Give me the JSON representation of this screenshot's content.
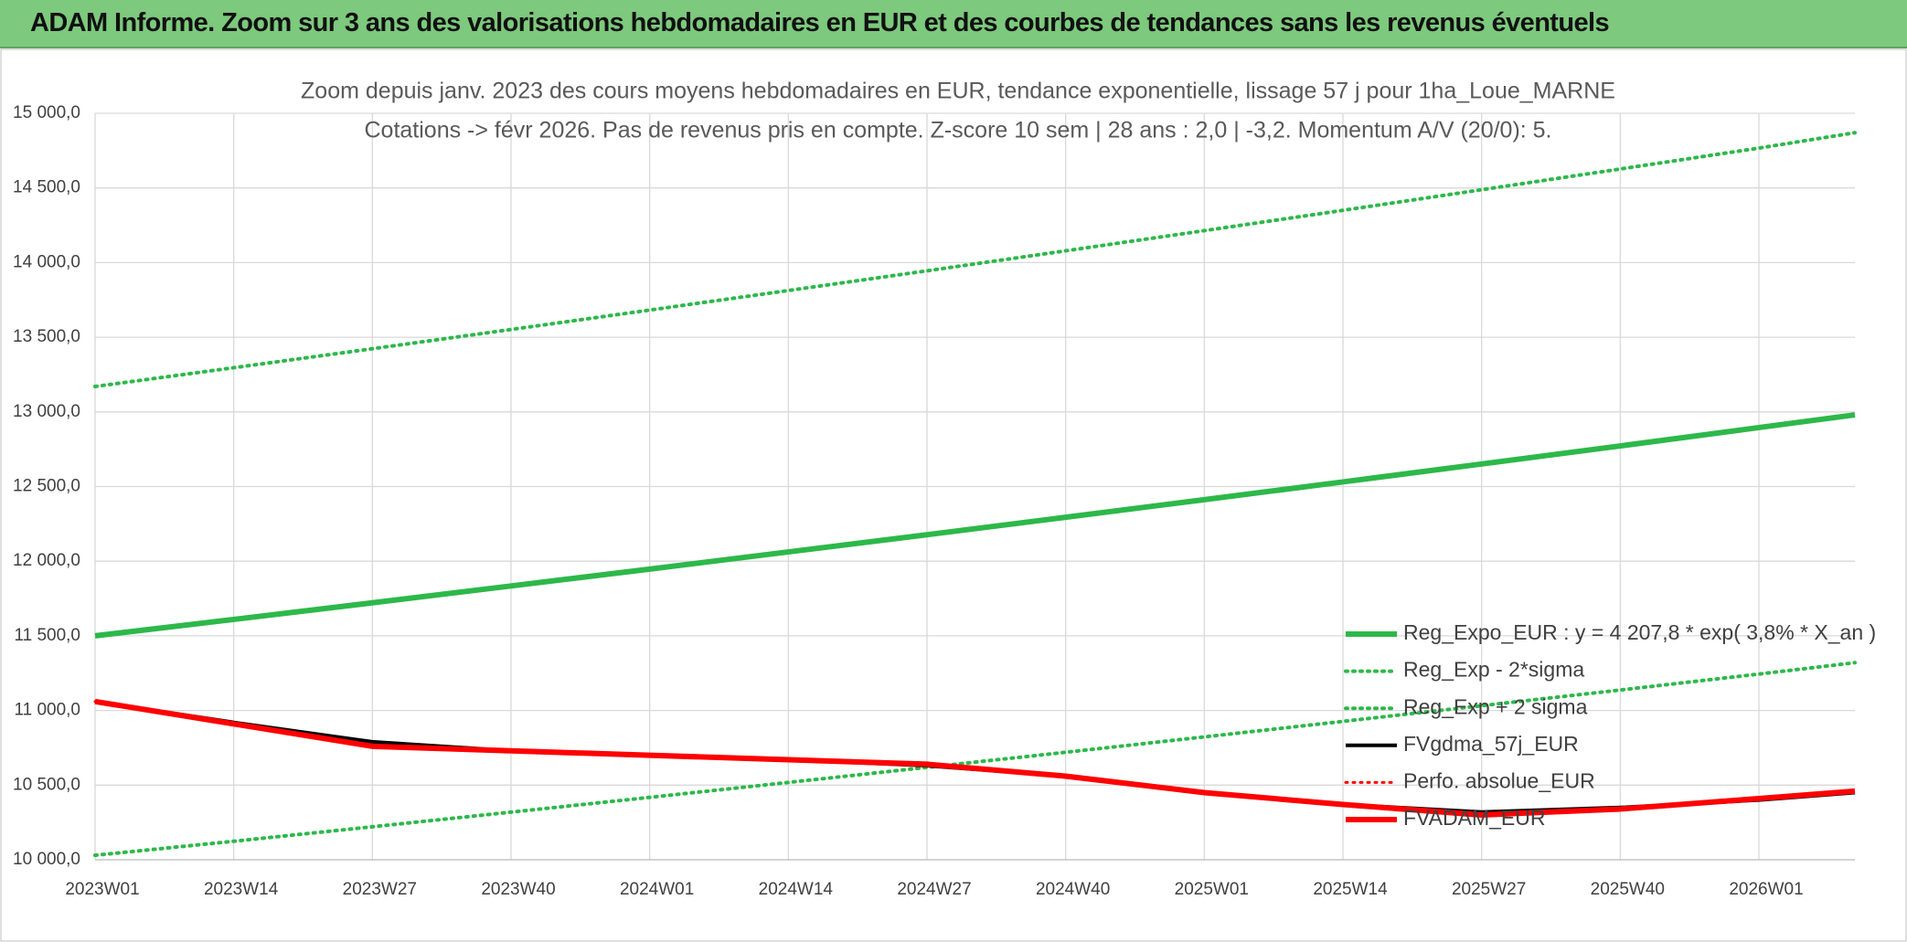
{
  "header": {
    "title": "ADAM Informe. Zoom sur 3 ans des valorisations hebdomadaires en EUR et des courbes de tendances sans les revenus éventuels"
  },
  "chart_data": {
    "type": "line",
    "subtitle": [
      "Zoom depuis janv. 2023 des cours moyens hebdomadaires en EUR, tendance exponentielle, lissage 57 j pour 1ha_Loue_MARNE",
      "Cotations -> févr 2026. Pas de revenus pris en compte. Z-score 10 sem | 28 ans : 2,0 | -3,2. Momentum A/V (20/0): 5."
    ],
    "x": [
      0,
      13,
      26,
      39,
      52,
      65,
      78,
      91,
      104,
      117,
      130,
      143,
      156,
      165
    ],
    "xlim": [
      0,
      165
    ],
    "xticks": [
      {
        "value": 0,
        "label": "2023W01"
      },
      {
        "value": 13,
        "label": "2023W14"
      },
      {
        "value": 26,
        "label": "2023W27"
      },
      {
        "value": 39,
        "label": "2023W40"
      },
      {
        "value": 52,
        "label": "2024W01"
      },
      {
        "value": 65,
        "label": "2024W14"
      },
      {
        "value": 78,
        "label": "2024W27"
      },
      {
        "value": 91,
        "label": "2024W40"
      },
      {
        "value": 104,
        "label": "2025W01"
      },
      {
        "value": 117,
        "label": "2025W14"
      },
      {
        "value": 130,
        "label": "2025W27"
      },
      {
        "value": 143,
        "label": "2025W40"
      },
      {
        "value": 156,
        "label": "2026W01"
      }
    ],
    "ylim": [
      10000,
      15000
    ],
    "yticks": [
      {
        "value": 10000,
        "label": "10 000,0"
      },
      {
        "value": 10500,
        "label": "10 500,0"
      },
      {
        "value": 11000,
        "label": "11 000,0"
      },
      {
        "value": 11500,
        "label": "11 500,0"
      },
      {
        "value": 12000,
        "label": "12 000,0"
      },
      {
        "value": 12500,
        "label": "12 500,0"
      },
      {
        "value": 13000,
        "label": "13 000,0"
      },
      {
        "value": 13500,
        "label": "13 500,0"
      },
      {
        "value": 14000,
        "label": "14 000,0"
      },
      {
        "value": 14500,
        "label": "14 500,0"
      },
      {
        "value": 15000,
        "label": "15 000,0"
      }
    ],
    "grid": true,
    "series": [
      {
        "name": "Reg_Expo_EUR : y = 4 207,8 * exp( 3,8% *  X_an )",
        "color": "#2db84a",
        "style": "solid",
        "width": 6,
        "values": [
          11500,
          11610,
          11721,
          11834,
          11947,
          12062,
          12177,
          12294,
          12412,
          12531,
          12651,
          12772,
          12895,
          12980
        ]
      },
      {
        "name": "Reg_Exp - 2*sigma",
        "color": "#2db84a",
        "style": "dotted",
        "width": 4,
        "values": [
          10030,
          10124,
          10221,
          10319,
          10418,
          10518,
          10619,
          10720,
          10823,
          10927,
          11032,
          11137,
          11244,
          11320
        ]
      },
      {
        "name": "Reg_Exp + 2 sigma",
        "color": "#2db84a",
        "style": "dotted",
        "width": 4,
        "values": [
          13170,
          13296,
          13423,
          13552,
          13682,
          13813,
          13945,
          14079,
          14214,
          14350,
          14488,
          14627,
          14767,
          14870
        ]
      },
      {
        "name": "FVgdma_57j_EUR",
        "color": "#000000",
        "style": "solid",
        "width": 4,
        "values": [
          11060,
          10920,
          10790,
          10730,
          10700,
          10670,
          10630,
          10560,
          10450,
          10370,
          10320,
          10350,
          10400,
          10450
        ]
      },
      {
        "name": "Perfo. absolue_EUR",
        "color": "#ff0000",
        "style": "dotted",
        "width": 3,
        "values": [
          11060,
          10910,
          10760,
          10730,
          10700,
          10670,
          10640,
          10560,
          10450,
          10370,
          10300,
          10340,
          10410,
          10460
        ]
      },
      {
        "name": "FVADAM_EUR",
        "color": "#ff0000",
        "style": "solid",
        "width": 6,
        "values": [
          11060,
          10910,
          10760,
          10730,
          10700,
          10670,
          10640,
          10560,
          10450,
          10370,
          10300,
          10340,
          10410,
          10460
        ]
      }
    ]
  }
}
